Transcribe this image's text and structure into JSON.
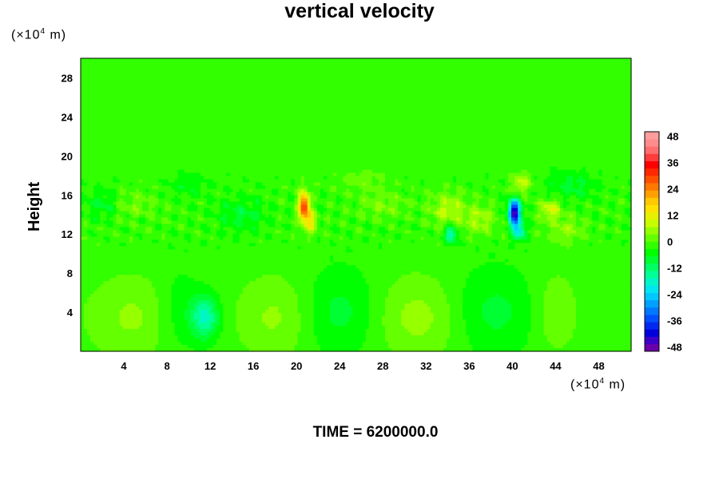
{
  "chart_data": {
    "type": "heatmap",
    "title": "vertical velocity",
    "ylabel": "Height",
    "xlabel": "",
    "x_unit": {
      "prefix": "(×10",
      "exp": "4",
      "suffix": " m)"
    },
    "y_unit": {
      "prefix": "(×10",
      "exp": "4",
      "suffix": " m)"
    },
    "footer": "TIME = 6200000.0",
    "xlim": [
      0,
      51
    ],
    "ylim": [
      0,
      30
    ],
    "x_ticks": [
      "4",
      "8",
      "12",
      "16",
      "20",
      "24",
      "28",
      "32",
      "36",
      "40",
      "44",
      "48"
    ],
    "y_ticks": [
      "4",
      "8",
      "12",
      "16",
      "20",
      "24",
      "28"
    ],
    "colorbar": {
      "range": [
        -50,
        50
      ],
      "ticks": [
        "48",
        "36",
        "24",
        "12",
        "0",
        "-12",
        "-24",
        "-36",
        "-48"
      ],
      "levels": [
        "#6a00a8",
        "#3c00c8",
        "#0000dc",
        "#0028f0",
        "#0050ff",
        "#0078ff",
        "#00a0ff",
        "#00c8ff",
        "#00e6f0",
        "#00f5c8",
        "#00ff96",
        "#00ff64",
        "#00ff32",
        "#00ff00",
        "#32ff00",
        "#64ff00",
        "#96ff00",
        "#c8ff00",
        "#e6f000",
        "#ffe100",
        "#ffc800",
        "#ffa000",
        "#ff7800",
        "#ff5000",
        "#ff2800",
        "#ff0000",
        "#ff3c3c",
        "#ff6e6e",
        "#ff8c8c",
        "#ff9c9c"
      ]
    },
    "background_value": -2,
    "features": [
      {
        "x": 5,
        "y": 3.5,
        "sx": 3.2,
        "sy": 3,
        "v": 6
      },
      {
        "x": 18,
        "y": 3.5,
        "sx": 2.5,
        "sy": 3,
        "v": 6
      },
      {
        "x": 31.5,
        "y": 3.5,
        "sx": 3,
        "sy": 3,
        "v": 7
      },
      {
        "x": 44,
        "y": 4,
        "sx": 1.5,
        "sy": 3,
        "v": 5
      },
      {
        "x": 11.5,
        "y": 3.5,
        "sx": 0.9,
        "sy": 1.5,
        "v": -16
      },
      {
        "x": 24,
        "y": 4,
        "sx": 2.5,
        "sy": 3,
        "v": -6
      },
      {
        "x": 38,
        "y": 4,
        "sx": 3,
        "sy": 3,
        "v": -6
      },
      {
        "x": 9,
        "y": 4,
        "sx": 1.5,
        "sy": 3,
        "v": -5
      },
      {
        "x": 20.7,
        "y": 14.8,
        "sx": 0.35,
        "sy": 1.0,
        "v": 34
      },
      {
        "x": 21.3,
        "y": 13.2,
        "sx": 0.4,
        "sy": 0.8,
        "v": 14
      },
      {
        "x": 40.2,
        "y": 14.2,
        "sx": 0.4,
        "sy": 0.9,
        "v": -44
      },
      {
        "x": 40.6,
        "y": 12.3,
        "sx": 0.4,
        "sy": 0.6,
        "v": -20
      },
      {
        "x": 34.3,
        "y": 12,
        "sx": 0.4,
        "sy": 0.6,
        "v": -18
      },
      {
        "x": 40.8,
        "y": 17.2,
        "sx": 0.6,
        "sy": 0.8,
        "v": 10
      },
      {
        "x": 43.5,
        "y": 14.5,
        "sx": 0.7,
        "sy": 0.7,
        "v": 12
      },
      {
        "x": 34,
        "y": 14.5,
        "sx": 1.2,
        "sy": 1.2,
        "v": 9
      },
      {
        "x": 37,
        "y": 13.5,
        "sx": 1,
        "sy": 1,
        "v": 8
      },
      {
        "x": 28,
        "y": 15,
        "sx": 1.5,
        "sy": 1,
        "v": 5
      },
      {
        "x": 5,
        "y": 15,
        "sx": 1.5,
        "sy": 1,
        "v": 4
      },
      {
        "x": 2,
        "y": 15,
        "sx": 1,
        "sy": 1,
        "v": -6
      },
      {
        "x": 15,
        "y": 14,
        "sx": 1.5,
        "sy": 1.2,
        "v": -6
      },
      {
        "x": 45.5,
        "y": 17,
        "sx": 1.5,
        "sy": 1,
        "v": -6
      },
      {
        "x": 26,
        "y": 17.5,
        "sx": 1.5,
        "sy": 0.8,
        "v": 4
      },
      {
        "x": 10,
        "y": 17,
        "sx": 1.2,
        "sy": 0.8,
        "v": -4
      },
      {
        "x": 45,
        "y": 12.5,
        "sx": 1.2,
        "sy": 1,
        "v": 6
      }
    ],
    "ripple_band": {
      "ymin": 9,
      "ymax": 19.5,
      "amp": 3.5
    }
  }
}
